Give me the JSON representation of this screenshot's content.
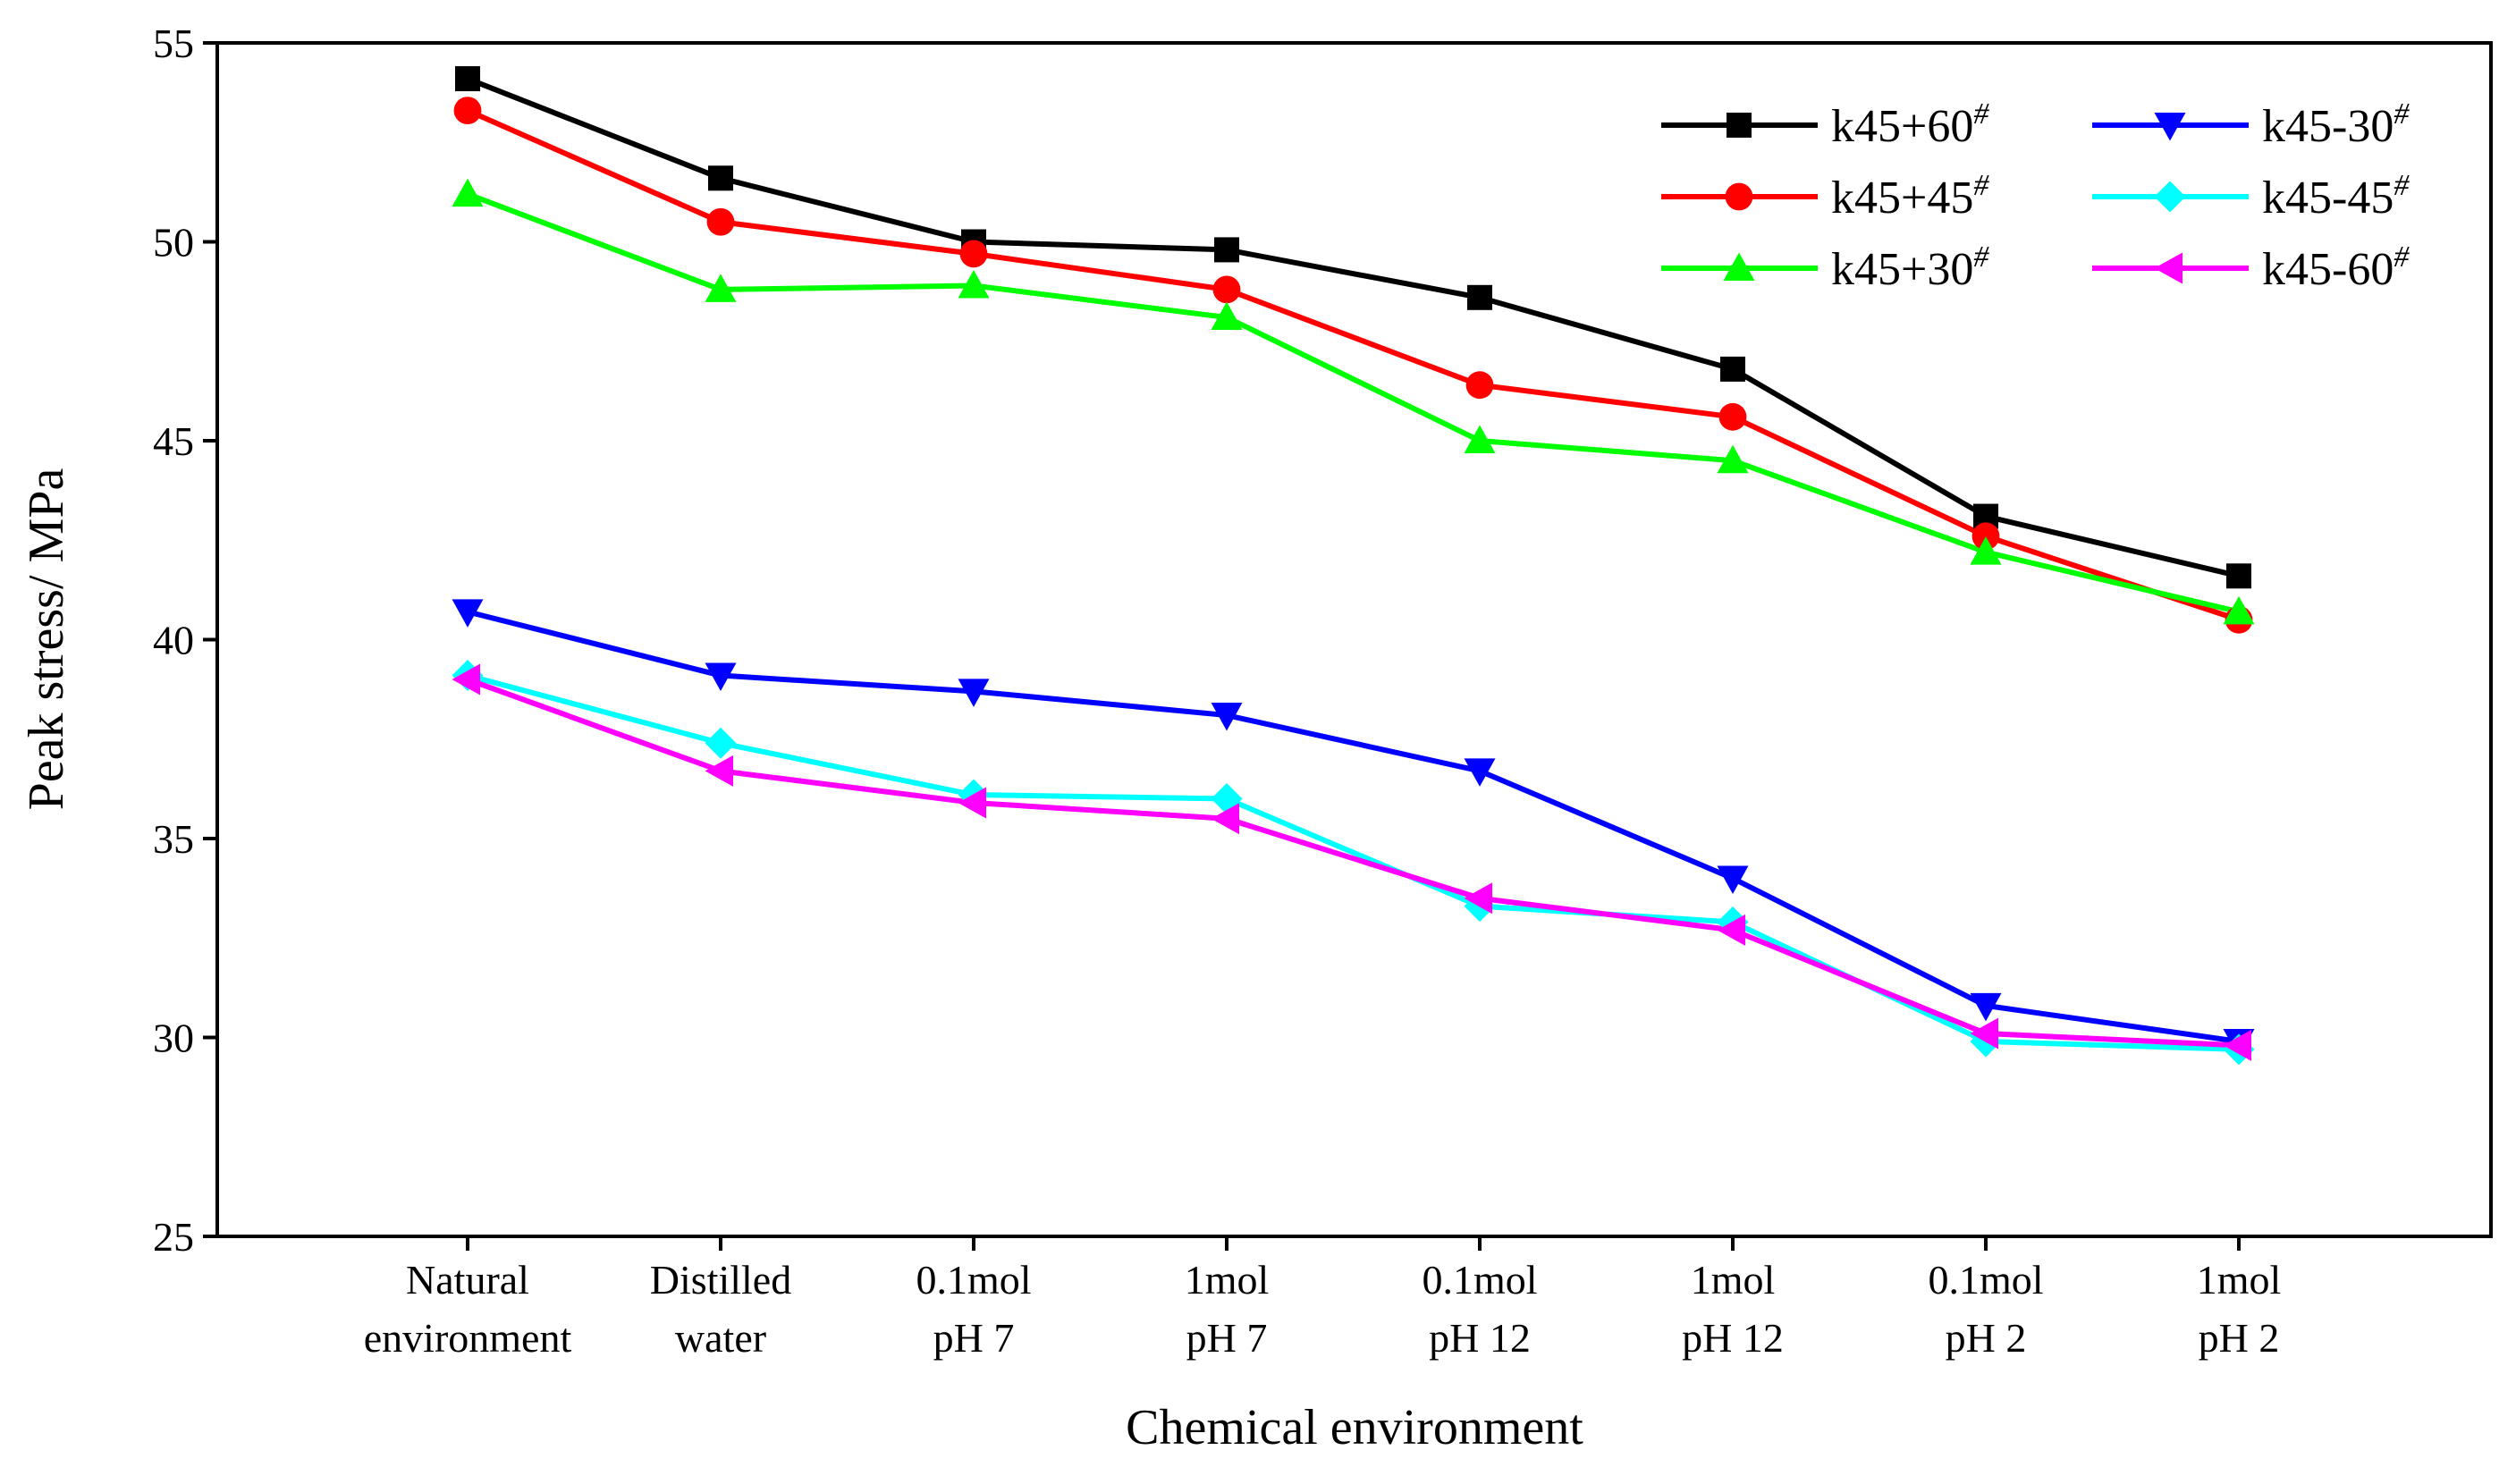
{
  "chart_data": {
    "type": "line",
    "title": "",
    "xlabel": "Chemical environment",
    "ylabel": "Peak stress/ MPa",
    "ylim": [
      25,
      55
    ],
    "yticks": [
      25,
      30,
      35,
      40,
      45,
      50,
      55
    ],
    "grid": false,
    "legend_position": "top-right",
    "categories": [
      [
        "Natural",
        "environment"
      ],
      [
        "Distilled",
        "water"
      ],
      [
        "0.1mol",
        "pH  7"
      ],
      [
        "1mol",
        "pH  7"
      ],
      [
        "0.1mol",
        "pH  12"
      ],
      [
        "1mol",
        "pH  12"
      ],
      [
        "0.1mol",
        "pH  2"
      ],
      [
        "1mol",
        "pH  2"
      ]
    ],
    "series": [
      {
        "name": "k45+60",
        "sup": "#",
        "color": "#000000",
        "marker": "square",
        "values": [
          54.1,
          51.6,
          50.0,
          49.8,
          48.6,
          46.8,
          43.1,
          41.6
        ]
      },
      {
        "name": "k45+45",
        "sup": "#",
        "color": "#ff0000",
        "marker": "circle",
        "values": [
          53.3,
          50.5,
          49.7,
          48.8,
          46.4,
          45.6,
          42.6,
          40.5
        ]
      },
      {
        "name": "k45+30",
        "sup": "#",
        "color": "#00ff00",
        "marker": "triangle-up",
        "values": [
          51.2,
          48.8,
          48.9,
          48.1,
          45.0,
          44.5,
          42.2,
          40.7
        ]
      },
      {
        "name": "k45-30",
        "sup": "#",
        "color": "#0000ff",
        "marker": "triangle-down",
        "values": [
          40.7,
          39.1,
          38.7,
          38.1,
          36.7,
          34.0,
          30.8,
          29.9
        ]
      },
      {
        "name": "k45-45",
        "sup": "#",
        "color": "#00ffff",
        "marker": "diamond",
        "values": [
          39.1,
          37.4,
          36.1,
          36.0,
          33.3,
          32.9,
          29.9,
          29.7
        ]
      },
      {
        "name": "k45-60",
        "sup": "#",
        "color": "#ff00ff",
        "marker": "triangle-left",
        "values": [
          39.0,
          36.7,
          35.9,
          35.5,
          33.5,
          32.7,
          30.1,
          29.8
        ]
      }
    ]
  }
}
